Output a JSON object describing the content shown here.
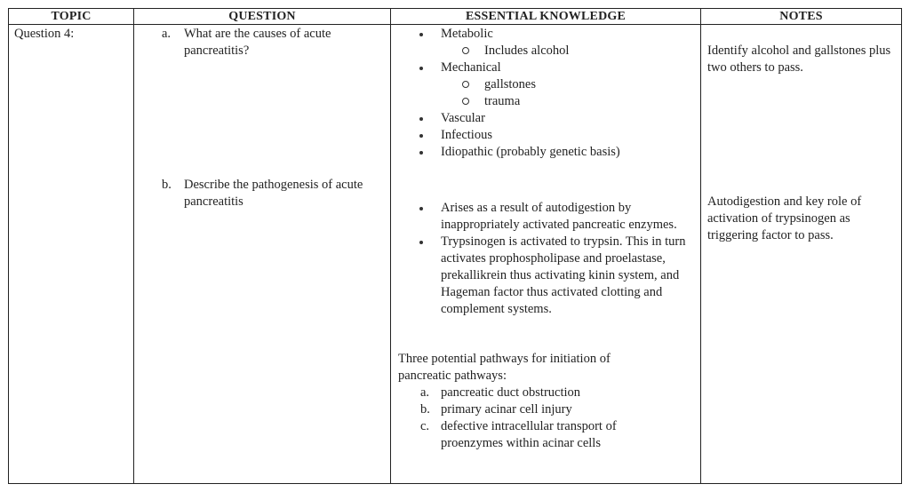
{
  "headers": {
    "topic": "TOPIC",
    "question": "QUESTION",
    "knowledge": "ESSENTIAL KNOWLEDGE",
    "notes": "NOTES"
  },
  "topic": "Question 4:",
  "questions": [
    {
      "letter": "a.",
      "text": "What are the causes of  acute pancreatitis?"
    },
    {
      "letter": "b.",
      "text": "Describe the pathogenesis of acute pancreatitis"
    }
  ],
  "causes": {
    "metabolic": "Metabolic",
    "metabolic_sub": [
      "Includes alcohol"
    ],
    "mechanical": "Mechanical",
    "mechanical_sub": [
      "gallstones",
      "trauma"
    ],
    "others": [
      "Vascular",
      "Infectious",
      "Idiopathic (probably genetic basis)"
    ]
  },
  "pathogenesis": [
    "Arises as a result of autodigestion by inappropriately activated pancreatic enzymes.",
    "Trypsinogen is activated to trypsin. This in turn activates prophospholipase and proelastase, prekallikrein thus activating kinin system, and Hageman factor thus activated clotting and complement systems."
  ],
  "pathways": {
    "intro": "Three potential pathways for initiation of pancreatic pathways:",
    "items": [
      {
        "letter": "a.",
        "text": "pancreatic duct obstruction"
      },
      {
        "letter": "b.",
        "text": "primary acinar cell injury"
      },
      {
        "letter": "c.",
        "text": "defective intracellular transport of proenzymes within acinar cells"
      }
    ]
  },
  "notes": [
    "Identify alcohol and gallstones plus two others to pass.",
    "Autodigestion and key role of activation of trypsinogen as triggering factor to pass."
  ]
}
